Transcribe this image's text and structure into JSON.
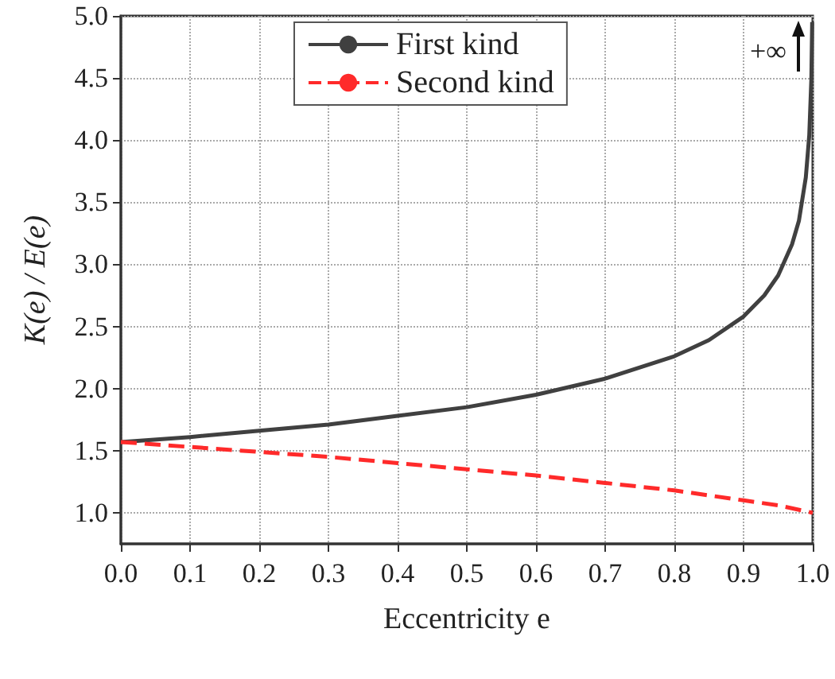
{
  "chart_data": {
    "type": "line",
    "xlabel": "Eccentricity e",
    "ylabel": "K(e) / E(e)",
    "series": [
      {
        "name": "First kind",
        "color": "#404040",
        "line_style": "solid",
        "x": [
          0,
          0.1,
          0.2,
          0.3,
          0.4,
          0.5,
          0.6,
          0.7,
          0.8,
          0.85,
          0.9,
          0.93,
          0.95,
          0.97,
          0.98,
          0.99,
          0.995,
          0.998,
          0.9992
        ],
        "values": [
          1.57,
          1.61,
          1.66,
          1.71,
          1.78,
          1.85,
          1.95,
          2.08,
          2.26,
          2.39,
          2.58,
          2.75,
          2.91,
          3.16,
          3.35,
          3.7,
          4.04,
          4.49,
          4.95
        ]
      },
      {
        "name": "Second kind",
        "color": "#ff2a2a",
        "line_style": "dashed",
        "x": [
          0,
          0.1,
          0.2,
          0.3,
          0.4,
          0.5,
          0.6,
          0.7,
          0.8,
          0.9,
          0.95,
          1.0
        ],
        "values": [
          1.57,
          1.53,
          1.49,
          1.45,
          1.4,
          1.35,
          1.3,
          1.24,
          1.18,
          1.1,
          1.06,
          1.0
        ]
      }
    ],
    "xlim": [
      0,
      1
    ],
    "xticks": [
      {
        "value": 0,
        "label": "0.0"
      },
      0.1,
      0.2,
      0.3,
      0.4,
      0.5,
      0.6,
      0.7,
      0.8,
      0.9,
      {
        "value": 1,
        "label": "1.0"
      }
    ],
    "ylim": [
      0.75,
      5
    ],
    "yticks": [
      {
        "value": 1,
        "label": "1.0"
      },
      1.5,
      {
        "value": 2,
        "label": "2.0"
      },
      2.5,
      {
        "value": 3,
        "label": "3.0"
      },
      3.5,
      {
        "value": 4,
        "label": "4.0"
      },
      4.5,
      {
        "value": 5,
        "label": "5.0"
      }
    ],
    "grid": true,
    "legend": "top",
    "marker": "none",
    "annotations": [
      "+∞"
    ]
  }
}
